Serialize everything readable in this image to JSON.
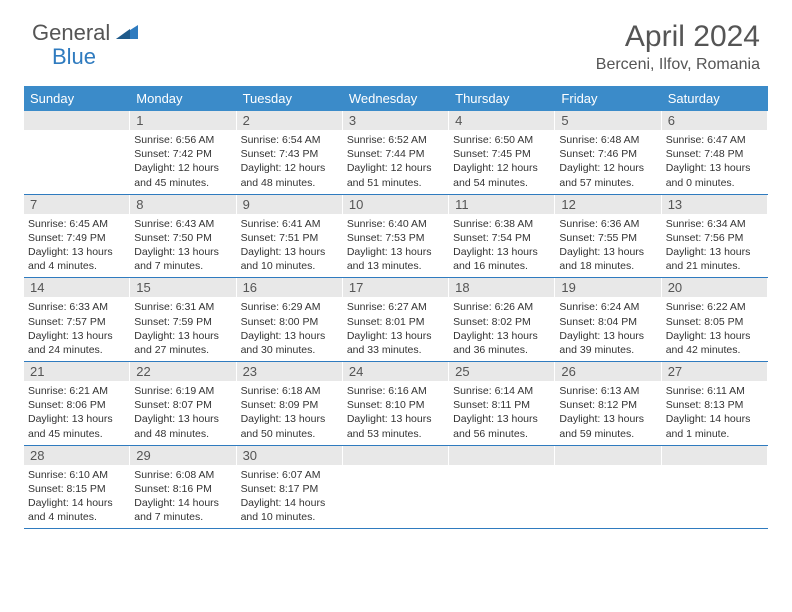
{
  "brand": {
    "text1": "General",
    "text2": "Blue"
  },
  "title": "April 2024",
  "location": "Berceni, Ilfov, Romania",
  "colors": {
    "header_bg": "#3b8bc9",
    "header_text": "#ffffff",
    "daynum_bg": "#e8e8e8",
    "border": "#2f7bbf",
    "accent": "#2f7bbf"
  },
  "days_of_week": [
    "Sunday",
    "Monday",
    "Tuesday",
    "Wednesday",
    "Thursday",
    "Friday",
    "Saturday"
  ],
  "weeks": [
    [
      {
        "n": "",
        "empty": true
      },
      {
        "n": "1",
        "sr": "Sunrise: 6:56 AM",
        "ss": "Sunset: 7:42 PM",
        "dl": "Daylight: 12 hours and 45 minutes."
      },
      {
        "n": "2",
        "sr": "Sunrise: 6:54 AM",
        "ss": "Sunset: 7:43 PM",
        "dl": "Daylight: 12 hours and 48 minutes."
      },
      {
        "n": "3",
        "sr": "Sunrise: 6:52 AM",
        "ss": "Sunset: 7:44 PM",
        "dl": "Daylight: 12 hours and 51 minutes."
      },
      {
        "n": "4",
        "sr": "Sunrise: 6:50 AM",
        "ss": "Sunset: 7:45 PM",
        "dl": "Daylight: 12 hours and 54 minutes."
      },
      {
        "n": "5",
        "sr": "Sunrise: 6:48 AM",
        "ss": "Sunset: 7:46 PM",
        "dl": "Daylight: 12 hours and 57 minutes."
      },
      {
        "n": "6",
        "sr": "Sunrise: 6:47 AM",
        "ss": "Sunset: 7:48 PM",
        "dl": "Daylight: 13 hours and 0 minutes."
      }
    ],
    [
      {
        "n": "7",
        "sr": "Sunrise: 6:45 AM",
        "ss": "Sunset: 7:49 PM",
        "dl": "Daylight: 13 hours and 4 minutes."
      },
      {
        "n": "8",
        "sr": "Sunrise: 6:43 AM",
        "ss": "Sunset: 7:50 PM",
        "dl": "Daylight: 13 hours and 7 minutes."
      },
      {
        "n": "9",
        "sr": "Sunrise: 6:41 AM",
        "ss": "Sunset: 7:51 PM",
        "dl": "Daylight: 13 hours and 10 minutes."
      },
      {
        "n": "10",
        "sr": "Sunrise: 6:40 AM",
        "ss": "Sunset: 7:53 PM",
        "dl": "Daylight: 13 hours and 13 minutes."
      },
      {
        "n": "11",
        "sr": "Sunrise: 6:38 AM",
        "ss": "Sunset: 7:54 PM",
        "dl": "Daylight: 13 hours and 16 minutes."
      },
      {
        "n": "12",
        "sr": "Sunrise: 6:36 AM",
        "ss": "Sunset: 7:55 PM",
        "dl": "Daylight: 13 hours and 18 minutes."
      },
      {
        "n": "13",
        "sr": "Sunrise: 6:34 AM",
        "ss": "Sunset: 7:56 PM",
        "dl": "Daylight: 13 hours and 21 minutes."
      }
    ],
    [
      {
        "n": "14",
        "sr": "Sunrise: 6:33 AM",
        "ss": "Sunset: 7:57 PM",
        "dl": "Daylight: 13 hours and 24 minutes."
      },
      {
        "n": "15",
        "sr": "Sunrise: 6:31 AM",
        "ss": "Sunset: 7:59 PM",
        "dl": "Daylight: 13 hours and 27 minutes."
      },
      {
        "n": "16",
        "sr": "Sunrise: 6:29 AM",
        "ss": "Sunset: 8:00 PM",
        "dl": "Daylight: 13 hours and 30 minutes."
      },
      {
        "n": "17",
        "sr": "Sunrise: 6:27 AM",
        "ss": "Sunset: 8:01 PM",
        "dl": "Daylight: 13 hours and 33 minutes."
      },
      {
        "n": "18",
        "sr": "Sunrise: 6:26 AM",
        "ss": "Sunset: 8:02 PM",
        "dl": "Daylight: 13 hours and 36 minutes."
      },
      {
        "n": "19",
        "sr": "Sunrise: 6:24 AM",
        "ss": "Sunset: 8:04 PM",
        "dl": "Daylight: 13 hours and 39 minutes."
      },
      {
        "n": "20",
        "sr": "Sunrise: 6:22 AM",
        "ss": "Sunset: 8:05 PM",
        "dl": "Daylight: 13 hours and 42 minutes."
      }
    ],
    [
      {
        "n": "21",
        "sr": "Sunrise: 6:21 AM",
        "ss": "Sunset: 8:06 PM",
        "dl": "Daylight: 13 hours and 45 minutes."
      },
      {
        "n": "22",
        "sr": "Sunrise: 6:19 AM",
        "ss": "Sunset: 8:07 PM",
        "dl": "Daylight: 13 hours and 48 minutes."
      },
      {
        "n": "23",
        "sr": "Sunrise: 6:18 AM",
        "ss": "Sunset: 8:09 PM",
        "dl": "Daylight: 13 hours and 50 minutes."
      },
      {
        "n": "24",
        "sr": "Sunrise: 6:16 AM",
        "ss": "Sunset: 8:10 PM",
        "dl": "Daylight: 13 hours and 53 minutes."
      },
      {
        "n": "25",
        "sr": "Sunrise: 6:14 AM",
        "ss": "Sunset: 8:11 PM",
        "dl": "Daylight: 13 hours and 56 minutes."
      },
      {
        "n": "26",
        "sr": "Sunrise: 6:13 AM",
        "ss": "Sunset: 8:12 PM",
        "dl": "Daylight: 13 hours and 59 minutes."
      },
      {
        "n": "27",
        "sr": "Sunrise: 6:11 AM",
        "ss": "Sunset: 8:13 PM",
        "dl": "Daylight: 14 hours and 1 minute."
      }
    ],
    [
      {
        "n": "28",
        "sr": "Sunrise: 6:10 AM",
        "ss": "Sunset: 8:15 PM",
        "dl": "Daylight: 14 hours and 4 minutes."
      },
      {
        "n": "29",
        "sr": "Sunrise: 6:08 AM",
        "ss": "Sunset: 8:16 PM",
        "dl": "Daylight: 14 hours and 7 minutes."
      },
      {
        "n": "30",
        "sr": "Sunrise: 6:07 AM",
        "ss": "Sunset: 8:17 PM",
        "dl": "Daylight: 14 hours and 10 minutes."
      },
      {
        "n": "",
        "empty": true
      },
      {
        "n": "",
        "empty": true
      },
      {
        "n": "",
        "empty": true
      },
      {
        "n": "",
        "empty": true
      }
    ]
  ]
}
